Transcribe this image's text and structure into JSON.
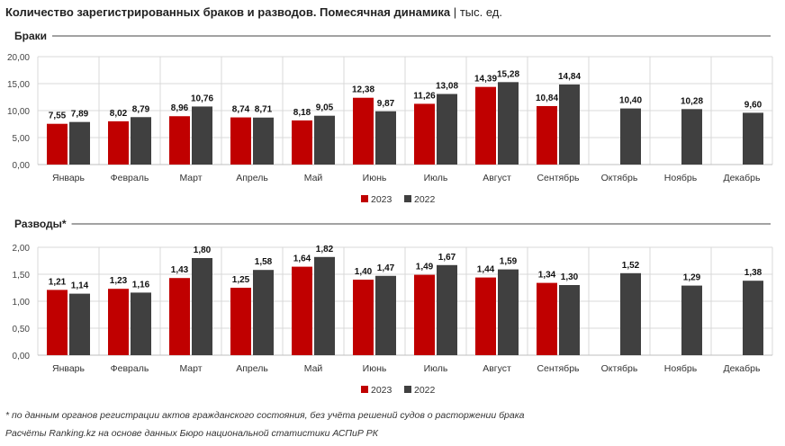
{
  "header": {
    "title": "Количество зарегистрированных браков и разводов. Помесячная динамика",
    "separator": "|",
    "unit": "тыс. ед."
  },
  "colors": {
    "series_2023": "#c00000",
    "series_2022": "#404040",
    "grid": "#d9d9d9"
  },
  "chart_data": [
    {
      "type": "bar",
      "title": "Браки",
      "categories": [
        "Январь",
        "Февраль",
        "Март",
        "Апрель",
        "Май",
        "Июнь",
        "Июль",
        "Август",
        "Сентябрь",
        "Октябрь",
        "Ноябрь",
        "Декабрь"
      ],
      "series": [
        {
          "name": "2023",
          "values": [
            7.55,
            8.02,
            8.96,
            8.74,
            8.18,
            12.38,
            11.26,
            14.39,
            10.84,
            null,
            null,
            null
          ],
          "labels": [
            "7,55",
            "8,02",
            "8,96",
            "8,74",
            "8,18",
            "12,38",
            "11,26",
            "14,39",
            "10,84",
            "",
            "",
            ""
          ]
        },
        {
          "name": "2022",
          "values": [
            7.89,
            8.79,
            10.76,
            8.71,
            9.05,
            9.87,
            13.08,
            15.28,
            14.84,
            10.4,
            10.28,
            9.6
          ],
          "labels": [
            "7,89",
            "8,79",
            "10,76",
            "8,71",
            "9,05",
            "9,87",
            "13,08",
            "15,28",
            "14,84",
            "10,40",
            "10,28",
            "9,60"
          ]
        }
      ],
      "ylim": [
        0,
        20
      ],
      "yticks": [
        "0,00",
        "5,00",
        "10,00",
        "15,00",
        "20,00"
      ],
      "grid": true,
      "legend": "bottom-center"
    },
    {
      "type": "bar",
      "title": "Разводы*",
      "categories": [
        "Январь",
        "Февраль",
        "Март",
        "Апрель",
        "Май",
        "Июнь",
        "Июль",
        "Август",
        "Сентябрь",
        "Октябрь",
        "Ноябрь",
        "Декабрь"
      ],
      "series": [
        {
          "name": "2023",
          "values": [
            1.21,
            1.23,
            1.43,
            1.25,
            1.64,
            1.4,
            1.49,
            1.44,
            1.34,
            null,
            null,
            null
          ],
          "labels": [
            "1,21",
            "1,23",
            "1,43",
            "1,25",
            "1,64",
            "1,40",
            "1,49",
            "1,44",
            "1,34",
            "",
            "",
            ""
          ]
        },
        {
          "name": "2022",
          "values": [
            1.14,
            1.16,
            1.8,
            1.58,
            1.82,
            1.47,
            1.67,
            1.59,
            1.3,
            1.52,
            1.29,
            1.38
          ],
          "labels": [
            "1,14",
            "1,16",
            "1,80",
            "1,58",
            "1,82",
            "1,47",
            "1,67",
            "1,59",
            "1,30",
            "1,52",
            "1,29",
            "1,38"
          ]
        }
      ],
      "ylim": [
        0,
        2
      ],
      "yticks": [
        "0,00",
        "0,50",
        "1,00",
        "1,50",
        "2,00"
      ],
      "grid": true,
      "legend": "bottom-center"
    }
  ],
  "footnotes": {
    "note": "* по данным органов регистрации актов гражданского состояния, без учёта решений судов о расторжении брака",
    "source": "Расчёты Ranking.kz на основе данных Бюро национальной статистики АСПиР РК"
  }
}
